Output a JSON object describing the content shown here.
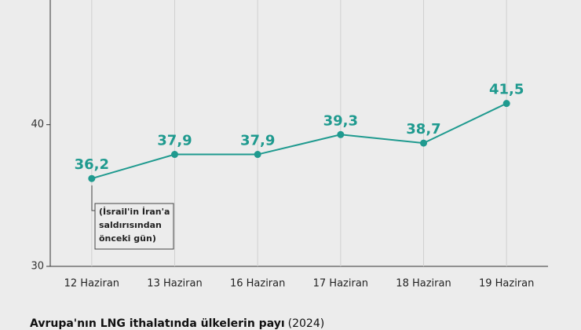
{
  "chart_data": {
    "type": "line",
    "categories": [
      "12 Haziran",
      "13 Haziran",
      "16 Haziran",
      "17 Haziran",
      "18 Haziran",
      "19 Haziran"
    ],
    "series": [
      {
        "color": "#1f9a8f",
        "values": [
          36.2,
          37.9,
          37.9,
          39.3,
          38.7,
          41.5
        ],
        "value_labels": [
          "36,2",
          "37,9",
          "37,9",
          "39,3",
          "38,7",
          "41,5"
        ]
      }
    ],
    "ylim": [
      30,
      48.8
    ],
    "yticks": [
      30,
      40
    ],
    "grid": true,
    "annotation": [
      "(İsrail'in İran'a",
      "saldırısından",
      "önceki gün)"
    ]
  },
  "footer": {
    "title": "Avrupa'nın LNG ithalatında ülkelerin payı",
    "note": "(2024)"
  }
}
